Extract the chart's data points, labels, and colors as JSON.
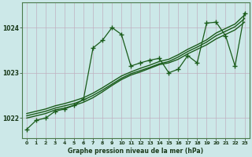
{
  "bg_color": "#cce8e8",
  "grid_color": "#c0b0c0",
  "line_color": "#1a5c1a",
  "xlabel": "Graphe pression niveau de la mer (hPa)",
  "xlim": [
    -0.5,
    23.5
  ],
  "ylim": [
    1021.55,
    1024.55
  ],
  "yticks": [
    1022,
    1023,
    1024
  ],
  "xticks": [
    0,
    1,
    2,
    3,
    4,
    5,
    6,
    7,
    8,
    9,
    10,
    11,
    12,
    13,
    14,
    15,
    16,
    17,
    18,
    19,
    20,
    21,
    22,
    23
  ],
  "series_main_x": [
    0,
    1,
    2,
    3,
    4,
    5,
    6,
    7,
    8,
    9,
    10,
    11,
    12,
    13,
    14,
    15,
    16,
    17,
    18,
    19,
    20,
    21,
    22,
    23
  ],
  "series_main_y": [
    1021.75,
    1021.95,
    1022.0,
    1022.15,
    1022.2,
    1022.28,
    1022.42,
    1023.55,
    1023.72,
    1024.0,
    1023.85,
    1023.15,
    1023.22,
    1023.28,
    1023.32,
    1023.0,
    1023.08,
    1023.38,
    1023.22,
    1024.1,
    1024.12,
    1023.82,
    1023.15,
    1024.32
  ],
  "series_trend1_x": [
    0,
    1,
    2,
    3,
    4,
    5,
    6,
    7,
    8,
    9,
    10,
    11,
    12,
    13,
    14,
    15,
    16,
    17,
    18,
    19,
    20,
    21,
    22,
    23
  ],
  "series_trend1_y": [
    1022.0,
    1022.05,
    1022.1,
    1022.18,
    1022.22,
    1022.28,
    1022.35,
    1022.45,
    1022.58,
    1022.72,
    1022.85,
    1022.95,
    1023.02,
    1023.1,
    1023.18,
    1023.22,
    1023.3,
    1023.42,
    1023.52,
    1023.62,
    1023.75,
    1023.85,
    1023.95,
    1024.12
  ],
  "series_trend2_x": [
    0,
    1,
    2,
    3,
    4,
    5,
    6,
    7,
    8,
    9,
    10,
    11,
    12,
    13,
    14,
    15,
    16,
    17,
    18,
    19,
    20,
    21,
    22,
    23
  ],
  "series_trend2_y": [
    1022.05,
    1022.1,
    1022.15,
    1022.22,
    1022.27,
    1022.32,
    1022.4,
    1022.5,
    1022.62,
    1022.75,
    1022.88,
    1022.98,
    1023.05,
    1023.12,
    1023.2,
    1023.25,
    1023.35,
    1023.47,
    1023.57,
    1023.68,
    1023.82,
    1023.92,
    1024.02,
    1024.2
  ],
  "series_trend3_x": [
    0,
    1,
    2,
    3,
    4,
    5,
    6,
    7,
    8,
    9,
    10,
    11,
    12,
    13,
    14,
    15,
    16,
    17,
    18,
    19,
    20,
    21,
    22,
    23
  ],
  "series_trend3_y": [
    1022.1,
    1022.15,
    1022.2,
    1022.27,
    1022.32,
    1022.38,
    1022.45,
    1022.55,
    1022.67,
    1022.8,
    1022.93,
    1023.02,
    1023.1,
    1023.17,
    1023.25,
    1023.3,
    1023.4,
    1023.52,
    1023.62,
    1023.73,
    1023.88,
    1023.98,
    1024.08,
    1024.28
  ]
}
